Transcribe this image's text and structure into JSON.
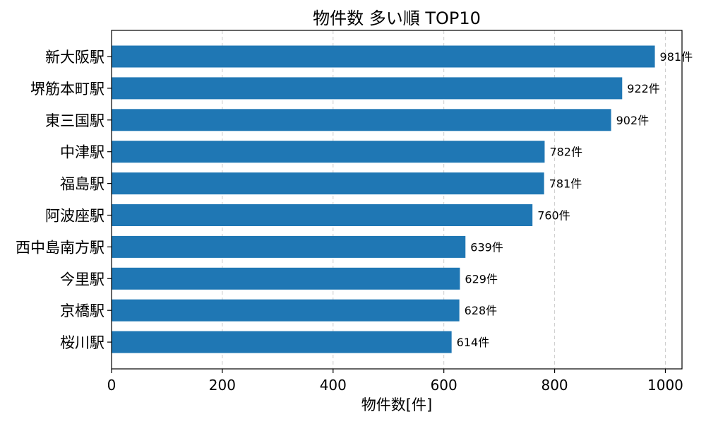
{
  "chart_data": {
    "type": "bar",
    "orientation": "horizontal",
    "title": "物件数 多い順 TOP10",
    "xlabel": "物件数[件]",
    "ylabel": "",
    "categories": [
      "新大阪駅",
      "堺筋本町駅",
      "東三国駅",
      "中津駅",
      "福島駅",
      "阿波座駅",
      "西中島南方駅",
      "今里駅",
      "京橋駅",
      "桜川駅"
    ],
    "values": [
      981,
      922,
      902,
      782,
      781,
      760,
      639,
      629,
      628,
      614
    ],
    "data_labels": [
      "981件",
      "922件",
      "902件",
      "782件",
      "781件",
      "760件",
      "639件",
      "629件",
      "628件",
      "614件"
    ],
    "xlim": [
      0,
      1030
    ],
    "xticks": [
      0,
      200,
      400,
      600,
      800,
      1000
    ],
    "xtick_labels": [
      "0",
      "200",
      "400",
      "600",
      "800",
      "1000"
    ],
    "grid": "x-dashed",
    "bar_color": "#1f77b4"
  }
}
